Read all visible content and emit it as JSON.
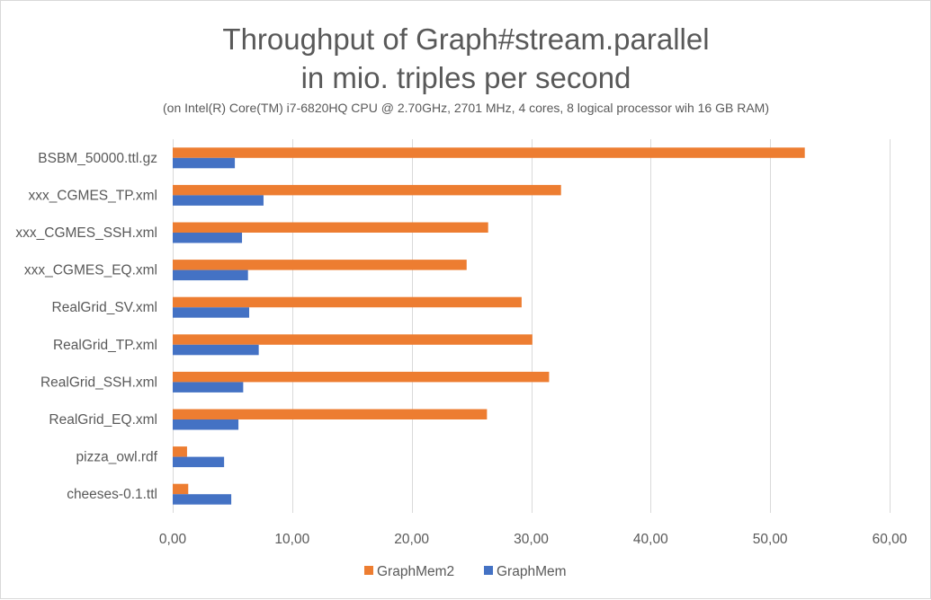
{
  "chart_data": {
    "type": "bar",
    "orientation": "horizontal",
    "title": [
      "Throughput of Graph#stream.parallel",
      "in mio. triples per second"
    ],
    "subtitle": "(on Intel(R) Core(TM) i7-6820HQ CPU @ 2.70GHz, 2701 MHz, 4 cores, 8 logical processor wih 16 GB RAM)",
    "categories": [
      "BSBM_50000.ttl.gz",
      "xxx_CGMES_TP.xml",
      "xxx_CGMES_SSH.xml",
      "xxx_CGMES_EQ.xml",
      "RealGrid_SV.xml",
      "RealGrid_TP.xml",
      "RealGrid_SSH.xml",
      "RealGrid_EQ.xml",
      "pizza_owl.rdf",
      "cheeses-0.1.ttl"
    ],
    "series": [
      {
        "name": "GraphMem2",
        "color": "#ed7d31",
        "values": [
          52.9,
          32.5,
          26.4,
          24.6,
          29.2,
          30.1,
          31.5,
          26.3,
          1.2,
          1.3
        ]
      },
      {
        "name": "GraphMem",
        "color": "#4472c4",
        "values": [
          5.2,
          7.6,
          5.8,
          6.3,
          6.4,
          7.2,
          5.9,
          5.5,
          4.3,
          4.9
        ]
      }
    ],
    "xlim": [
      0,
      60
    ],
    "xticks": [
      "0,00",
      "10,00",
      "20,00",
      "30,00",
      "40,00",
      "50,00",
      "60,00"
    ],
    "xtick_values": [
      0,
      10,
      20,
      30,
      40,
      50,
      60
    ],
    "grid": true,
    "legend_position": "bottom"
  }
}
